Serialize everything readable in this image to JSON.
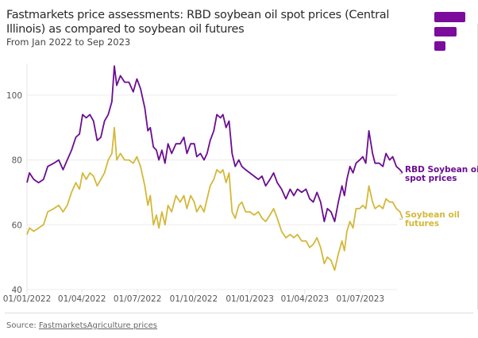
{
  "title": "Fastmarkets price assessments: RBD soybean oil spot prices (Central Illinois) as compared to soybean oil futures",
  "subtitle": "From Jan 2022 to Sep 2023",
  "source_prefix": "Source: ",
  "source_link": "FastmarketsAgriculture prices",
  "colors": {
    "spot": "#6a0d91",
    "futures": "#d4b83a",
    "logo": "#7b0c9c"
  },
  "chart_data": {
    "type": "line",
    "title": "",
    "xlabel": "",
    "ylabel": "",
    "ylim": [
      40,
      110
    ],
    "yticks": [
      40,
      60,
      80,
      100
    ],
    "xticks": [
      "01/01/2022",
      "01/04/2022",
      "01/07/2022",
      "01/10/2022",
      "01/01/2023",
      "01/04/2023",
      "01/07/2023"
    ],
    "grid": true,
    "legend": "right, inline labels",
    "series": [
      {
        "name": "RBD Soybean oil spot prices",
        "color": "#6a0d91",
        "points": [
          [
            "2022-01-01",
            73
          ],
          [
            "2022-01-05",
            76
          ],
          [
            "2022-01-12",
            74
          ],
          [
            "2022-01-20",
            73
          ],
          [
            "2022-01-28",
            74
          ],
          [
            "2022-02-04",
            78
          ],
          [
            "2022-02-14",
            79
          ],
          [
            "2022-02-22",
            80
          ],
          [
            "2022-03-01",
            77
          ],
          [
            "2022-03-08",
            80
          ],
          [
            "2022-03-15",
            83
          ],
          [
            "2022-03-22",
            87
          ],
          [
            "2022-03-28",
            88
          ],
          [
            "2022-04-02",
            94
          ],
          [
            "2022-04-08",
            93
          ],
          [
            "2022-04-14",
            94
          ],
          [
            "2022-04-20",
            92
          ],
          [
            "2022-04-26",
            86
          ],
          [
            "2022-05-02",
            87
          ],
          [
            "2022-05-08",
            92
          ],
          [
            "2022-05-14",
            94
          ],
          [
            "2022-05-20",
            98
          ],
          [
            "2022-05-24",
            109
          ],
          [
            "2022-05-28",
            103
          ],
          [
            "2022-06-03",
            106
          ],
          [
            "2022-06-10",
            104
          ],
          [
            "2022-06-17",
            104
          ],
          [
            "2022-06-24",
            101
          ],
          [
            "2022-06-30",
            105
          ],
          [
            "2022-07-06",
            102
          ],
          [
            "2022-07-13",
            96
          ],
          [
            "2022-07-18",
            89
          ],
          [
            "2022-07-22",
            90
          ],
          [
            "2022-07-27",
            84
          ],
          [
            "2022-08-01",
            83
          ],
          [
            "2022-08-05",
            80
          ],
          [
            "2022-08-10",
            83
          ],
          [
            "2022-08-15",
            79
          ],
          [
            "2022-08-20",
            85
          ],
          [
            "2022-08-26",
            82
          ],
          [
            "2022-09-02",
            85
          ],
          [
            "2022-09-09",
            85
          ],
          [
            "2022-09-15",
            87
          ],
          [
            "2022-09-20",
            82
          ],
          [
            "2022-09-26",
            85
          ],
          [
            "2022-10-02",
            85
          ],
          [
            "2022-10-06",
            81
          ],
          [
            "2022-10-12",
            82
          ],
          [
            "2022-10-18",
            80
          ],
          [
            "2022-10-23",
            82
          ],
          [
            "2022-10-28",
            86
          ],
          [
            "2022-11-03",
            89
          ],
          [
            "2022-11-08",
            94
          ],
          [
            "2022-11-14",
            93
          ],
          [
            "2022-11-18",
            94
          ],
          [
            "2022-11-23",
            90
          ],
          [
            "2022-11-28",
            92
          ],
          [
            "2022-12-03",
            82
          ],
          [
            "2022-12-08",
            78
          ],
          [
            "2022-12-14",
            80
          ],
          [
            "2022-12-19",
            78
          ],
          [
            "2022-12-25",
            77
          ],
          [
            "2023-01-01",
            76
          ],
          [
            "2023-01-08",
            75
          ],
          [
            "2023-01-15",
            74
          ],
          [
            "2023-01-21",
            75
          ],
          [
            "2023-01-27",
            72
          ],
          [
            "2023-02-03",
            74
          ],
          [
            "2023-02-09",
            76
          ],
          [
            "2023-02-15",
            73
          ],
          [
            "2023-02-22",
            71
          ],
          [
            "2023-03-01",
            68
          ],
          [
            "2023-03-08",
            71
          ],
          [
            "2023-03-14",
            69
          ],
          [
            "2023-03-20",
            71
          ],
          [
            "2023-03-27",
            70
          ],
          [
            "2023-04-03",
            71
          ],
          [
            "2023-04-09",
            68
          ],
          [
            "2023-04-15",
            67
          ],
          [
            "2023-04-21",
            70
          ],
          [
            "2023-04-27",
            67
          ],
          [
            "2023-05-03",
            61
          ],
          [
            "2023-05-08",
            65
          ],
          [
            "2023-05-14",
            64
          ],
          [
            "2023-05-20",
            61
          ],
          [
            "2023-05-26",
            67
          ],
          [
            "2023-06-01",
            72
          ],
          [
            "2023-06-05",
            69
          ],
          [
            "2023-06-09",
            74
          ],
          [
            "2023-06-14",
            78
          ],
          [
            "2023-06-19",
            76
          ],
          [
            "2023-06-24",
            79
          ],
          [
            "2023-06-30",
            80
          ],
          [
            "2023-07-05",
            81
          ],
          [
            "2023-07-10",
            79
          ],
          [
            "2023-07-15",
            89
          ],
          [
            "2023-07-21",
            82
          ],
          [
            "2023-07-25",
            79
          ],
          [
            "2023-08-01",
            79
          ],
          [
            "2023-08-07",
            78
          ],
          [
            "2023-08-12",
            82
          ],
          [
            "2023-08-18",
            80
          ],
          [
            "2023-08-23",
            81
          ],
          [
            "2023-08-29",
            78
          ],
          [
            "2023-09-04",
            77
          ],
          [
            "2023-09-08",
            76
          ]
        ]
      },
      {
        "name": "Soybean oil futures",
        "color": "#d4b83a",
        "points": [
          [
            "2022-01-01",
            57
          ],
          [
            "2022-01-05",
            59
          ],
          [
            "2022-01-12",
            58
          ],
          [
            "2022-01-20",
            59
          ],
          [
            "2022-01-28",
            60
          ],
          [
            "2022-02-04",
            64
          ],
          [
            "2022-02-14",
            65
          ],
          [
            "2022-02-22",
            66
          ],
          [
            "2022-03-01",
            64
          ],
          [
            "2022-03-08",
            66
          ],
          [
            "2022-03-15",
            70
          ],
          [
            "2022-03-22",
            73
          ],
          [
            "2022-03-28",
            71
          ],
          [
            "2022-04-02",
            76
          ],
          [
            "2022-04-08",
            74
          ],
          [
            "2022-04-14",
            76
          ],
          [
            "2022-04-20",
            75
          ],
          [
            "2022-04-26",
            72
          ],
          [
            "2022-05-02",
            74
          ],
          [
            "2022-05-08",
            76
          ],
          [
            "2022-05-14",
            80
          ],
          [
            "2022-05-20",
            82
          ],
          [
            "2022-05-24",
            90
          ],
          [
            "2022-05-28",
            80
          ],
          [
            "2022-06-03",
            82
          ],
          [
            "2022-06-10",
            80
          ],
          [
            "2022-06-17",
            80
          ],
          [
            "2022-06-24",
            79
          ],
          [
            "2022-06-30",
            81
          ],
          [
            "2022-07-06",
            78
          ],
          [
            "2022-07-13",
            72
          ],
          [
            "2022-07-18",
            66
          ],
          [
            "2022-07-22",
            69
          ],
          [
            "2022-07-27",
            60
          ],
          [
            "2022-08-01",
            63
          ],
          [
            "2022-08-05",
            59
          ],
          [
            "2022-08-10",
            64
          ],
          [
            "2022-08-15",
            60
          ],
          [
            "2022-08-20",
            66
          ],
          [
            "2022-08-26",
            64
          ],
          [
            "2022-09-02",
            69
          ],
          [
            "2022-09-09",
            67
          ],
          [
            "2022-09-15",
            69
          ],
          [
            "2022-09-20",
            65
          ],
          [
            "2022-09-26",
            69
          ],
          [
            "2022-10-02",
            67
          ],
          [
            "2022-10-06",
            64
          ],
          [
            "2022-10-12",
            66
          ],
          [
            "2022-10-18",
            64
          ],
          [
            "2022-10-23",
            68
          ],
          [
            "2022-10-28",
            72
          ],
          [
            "2022-11-03",
            74
          ],
          [
            "2022-11-08",
            77
          ],
          [
            "2022-11-14",
            76
          ],
          [
            "2022-11-18",
            77
          ],
          [
            "2022-11-23",
            73
          ],
          [
            "2022-11-28",
            76
          ],
          [
            "2022-12-03",
            64
          ],
          [
            "2022-12-08",
            62
          ],
          [
            "2022-12-14",
            66
          ],
          [
            "2022-12-19",
            67
          ],
          [
            "2022-12-25",
            64
          ],
          [
            "2023-01-01",
            64
          ],
          [
            "2023-01-08",
            63
          ],
          [
            "2023-01-15",
            64
          ],
          [
            "2023-01-21",
            62
          ],
          [
            "2023-01-27",
            61
          ],
          [
            "2023-02-03",
            63
          ],
          [
            "2023-02-09",
            65
          ],
          [
            "2023-02-15",
            62
          ],
          [
            "2023-02-22",
            58
          ],
          [
            "2023-03-01",
            56
          ],
          [
            "2023-03-08",
            57
          ],
          [
            "2023-03-14",
            56
          ],
          [
            "2023-03-20",
            57
          ],
          [
            "2023-03-27",
            55
          ],
          [
            "2023-04-03",
            55
          ],
          [
            "2023-04-09",
            53
          ],
          [
            "2023-04-15",
            54
          ],
          [
            "2023-04-21",
            56
          ],
          [
            "2023-04-27",
            53
          ],
          [
            "2023-05-03",
            48
          ],
          [
            "2023-05-08",
            50
          ],
          [
            "2023-05-14",
            49
          ],
          [
            "2023-05-20",
            46
          ],
          [
            "2023-05-26",
            51
          ],
          [
            "2023-06-01",
            55
          ],
          [
            "2023-06-05",
            52
          ],
          [
            "2023-06-09",
            58
          ],
          [
            "2023-06-14",
            61
          ],
          [
            "2023-06-19",
            59
          ],
          [
            "2023-06-24",
            65
          ],
          [
            "2023-06-30",
            65
          ],
          [
            "2023-07-05",
            66
          ],
          [
            "2023-07-10",
            65
          ],
          [
            "2023-07-15",
            72
          ],
          [
            "2023-07-21",
            67
          ],
          [
            "2023-07-25",
            65
          ],
          [
            "2023-08-01",
            66
          ],
          [
            "2023-08-07",
            65
          ],
          [
            "2023-08-12",
            68
          ],
          [
            "2023-08-18",
            67
          ],
          [
            "2023-08-23",
            67
          ],
          [
            "2023-08-29",
            65
          ],
          [
            "2023-09-04",
            64
          ],
          [
            "2023-09-08",
            62
          ]
        ]
      }
    ],
    "labels": [
      [
        "RBD Soybean oil",
        "spot prices"
      ],
      [
        "Soybean oil",
        "futures"
      ]
    ]
  }
}
